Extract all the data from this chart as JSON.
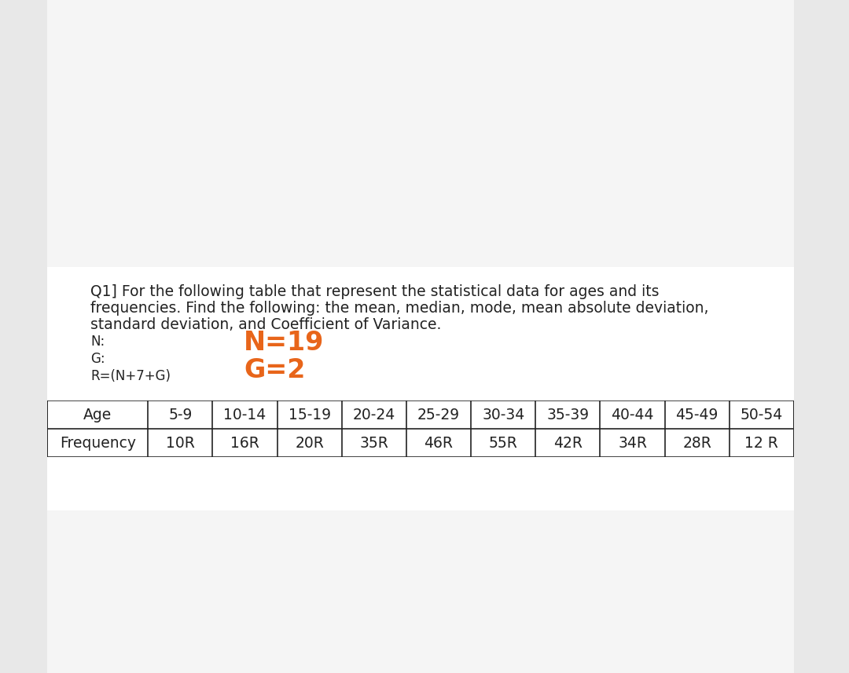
{
  "question_text_line1": "Q1] For the following table that represent the statistical data for ages and its",
  "question_text_line2": "frequencies. Find the following: the mean, median, mode, mean absolute deviation,",
  "question_text_line3": "standard deviation, and Coefficient of Variance.",
  "label_N": "N:",
  "label_G": "G:",
  "label_R": "R=(N+7+G)",
  "value_N": "N=19",
  "value_G": "G=2",
  "orange_color": "#E8651A",
  "text_color": "#222222",
  "background_color": "#f5f5f5",
  "table_bg": "#ffffff",
  "border_color": "#888888",
  "white_panel_color": "#ffffff",
  "table_headers": [
    "Age",
    "5-9",
    "10-14",
    "15-19",
    "20-24",
    "25-29",
    "30-34",
    "35-39",
    "40-44",
    "45-49",
    "50-54"
  ],
  "table_freq_label": "Frequency",
  "table_freq_values": [
    "10R",
    "16R",
    "20R",
    "35R",
    "46R",
    "55R",
    "42R",
    "34R",
    "28R",
    "12 R"
  ],
  "font_size_body": 13.5,
  "font_size_orange": 24,
  "font_size_table": 13.5,
  "font_size_label": 12
}
